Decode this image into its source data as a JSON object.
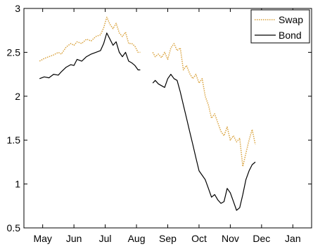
{
  "chart_data": {
    "type": "line",
    "title": "",
    "xlabel": "",
    "ylabel": "",
    "ylim": [
      0.5,
      3
    ],
    "yticks": [
      "0.5",
      "1",
      "1.5",
      "2",
      "2.5",
      "3"
    ],
    "xtick_labels": [
      "May",
      "Jun",
      "Jul",
      "Aug",
      "Sep",
      "Oct",
      "Nov",
      "Dec",
      "Jan"
    ],
    "x_unit": "month index (May = 0)",
    "xlim": [
      -0.6,
      8.6
    ],
    "legend": {
      "position": "top-right",
      "entries": [
        "Swap",
        "Bond"
      ]
    },
    "grid": false,
    "colors": {
      "Swap": "#d9a23c",
      "Bond": "#000000"
    },
    "series": [
      {
        "name": "Swap",
        "style": "dotted",
        "segments": [
          [
            [
              -0.1,
              2.4
            ],
            [
              0.05,
              2.43
            ],
            [
              0.2,
              2.45
            ],
            [
              0.35,
              2.47
            ],
            [
              0.5,
              2.5
            ],
            [
              0.6,
              2.48
            ],
            [
              0.75,
              2.56
            ],
            [
              0.9,
              2.6
            ],
            [
              1.0,
              2.58
            ],
            [
              1.1,
              2.62
            ],
            [
              1.25,
              2.6
            ],
            [
              1.4,
              2.65
            ],
            [
              1.55,
              2.63
            ],
            [
              1.7,
              2.68
            ],
            [
              1.85,
              2.7
            ],
            [
              1.95,
              2.78
            ],
            [
              2.05,
              2.9
            ],
            [
              2.15,
              2.82
            ],
            [
              2.25,
              2.77
            ],
            [
              2.35,
              2.83
            ],
            [
              2.45,
              2.72
            ],
            [
              2.55,
              2.68
            ],
            [
              2.65,
              2.73
            ],
            [
              2.75,
              2.6
            ],
            [
              2.85,
              2.6
            ],
            [
              2.95,
              2.57
            ],
            [
              3.05,
              2.5
            ],
            [
              3.12,
              2.5
            ]
          ],
          [
            [
              3.52,
              2.5
            ],
            [
              3.6,
              2.45
            ],
            [
              3.7,
              2.48
            ],
            [
              3.8,
              2.44
            ],
            [
              3.9,
              2.5
            ],
            [
              4.0,
              2.42
            ],
            [
              4.1,
              2.55
            ],
            [
              4.2,
              2.6
            ],
            [
              4.3,
              2.52
            ],
            [
              4.4,
              2.55
            ],
            [
              4.5,
              2.3
            ],
            [
              4.6,
              2.35
            ],
            [
              4.7,
              2.26
            ],
            [
              4.8,
              2.2
            ],
            [
              4.9,
              2.25
            ],
            [
              5.0,
              2.15
            ],
            [
              5.1,
              2.2
            ],
            [
              5.2,
              2.0
            ],
            [
              5.3,
              1.9
            ],
            [
              5.4,
              1.75
            ],
            [
              5.5,
              1.8
            ],
            [
              5.6,
              1.7
            ],
            [
              5.7,
              1.6
            ],
            [
              5.8,
              1.55
            ],
            [
              5.9,
              1.65
            ],
            [
              6.0,
              1.5
            ],
            [
              6.1,
              1.55
            ],
            [
              6.2,
              1.48
            ],
            [
              6.3,
              1.52
            ],
            [
              6.4,
              1.2
            ],
            [
              6.5,
              1.35
            ],
            [
              6.6,
              1.5
            ],
            [
              6.7,
              1.62
            ],
            [
              6.8,
              1.45
            ]
          ]
        ]
      },
      {
        "name": "Bond",
        "style": "solid",
        "segments": [
          [
            [
              -0.1,
              2.2
            ],
            [
              0.05,
              2.22
            ],
            [
              0.2,
              2.21
            ],
            [
              0.35,
              2.25
            ],
            [
              0.5,
              2.24
            ],
            [
              0.6,
              2.28
            ],
            [
              0.75,
              2.33
            ],
            [
              0.9,
              2.36
            ],
            [
              1.0,
              2.35
            ],
            [
              1.1,
              2.42
            ],
            [
              1.25,
              2.4
            ],
            [
              1.4,
              2.45
            ],
            [
              1.55,
              2.48
            ],
            [
              1.7,
              2.5
            ],
            [
              1.85,
              2.52
            ],
            [
              1.95,
              2.6
            ],
            [
              2.05,
              2.72
            ],
            [
              2.15,
              2.65
            ],
            [
              2.25,
              2.58
            ],
            [
              2.35,
              2.62
            ],
            [
              2.45,
              2.5
            ],
            [
              2.55,
              2.45
            ],
            [
              2.65,
              2.5
            ],
            [
              2.75,
              2.4
            ],
            [
              2.85,
              2.38
            ],
            [
              2.95,
              2.35
            ],
            [
              3.05,
              2.3
            ],
            [
              3.12,
              2.3
            ]
          ],
          [
            [
              3.52,
              2.15
            ],
            [
              3.6,
              2.18
            ],
            [
              3.7,
              2.14
            ],
            [
              3.8,
              2.12
            ],
            [
              3.9,
              2.1
            ],
            [
              4.0,
              2.2
            ],
            [
              4.1,
              2.25
            ],
            [
              4.2,
              2.2
            ],
            [
              4.3,
              2.18
            ],
            [
              4.4,
              2.05
            ],
            [
              4.5,
              1.9
            ],
            [
              4.6,
              1.75
            ],
            [
              4.7,
              1.6
            ],
            [
              4.8,
              1.45
            ],
            [
              4.9,
              1.3
            ],
            [
              5.0,
              1.15
            ],
            [
              5.1,
              1.1
            ],
            [
              5.2,
              1.05
            ],
            [
              5.3,
              0.95
            ],
            [
              5.4,
              0.85
            ],
            [
              5.5,
              0.88
            ],
            [
              5.6,
              0.82
            ],
            [
              5.7,
              0.78
            ],
            [
              5.8,
              0.8
            ],
            [
              5.9,
              0.95
            ],
            [
              6.0,
              0.9
            ],
            [
              6.1,
              0.8
            ],
            [
              6.2,
              0.7
            ],
            [
              6.3,
              0.73
            ],
            [
              6.4,
              0.88
            ],
            [
              6.5,
              1.05
            ],
            [
              6.6,
              1.15
            ],
            [
              6.7,
              1.22
            ],
            [
              6.8,
              1.25
            ]
          ]
        ]
      }
    ]
  }
}
